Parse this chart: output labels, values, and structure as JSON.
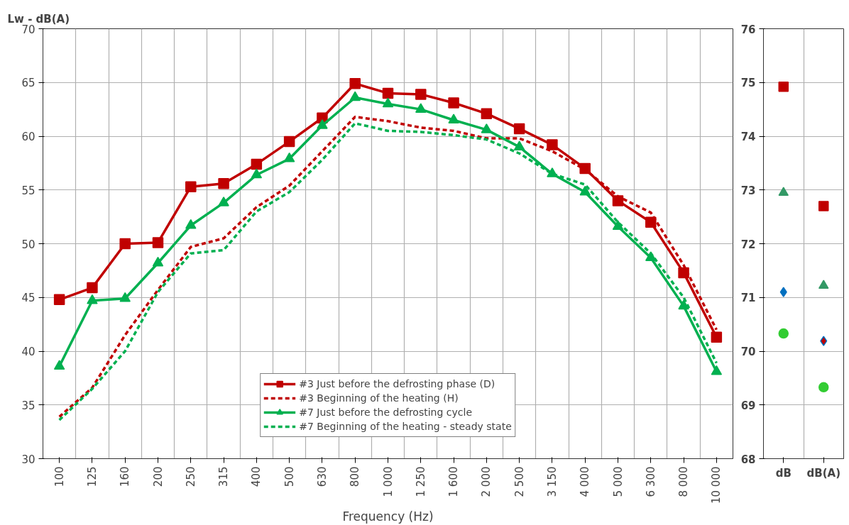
{
  "chart_data": [
    {
      "type": "line",
      "title": "Lw - dB(A)",
      "xlabel": "Frequency (Hz)",
      "categories": [
        "100",
        "125",
        "160",
        "200",
        "250",
        "315",
        "400",
        "500",
        "630",
        "800",
        "1 000",
        "1 250",
        "1 600",
        "2 000",
        "2 500",
        "3 150",
        "4 000",
        "5 000",
        "6 300",
        "8 000",
        "10 000"
      ],
      "series": [
        {
          "name": "#3 Just before the defrosting phase (D)",
          "color": "#c00000",
          "marker": "square",
          "line_style": "solid",
          "values": [
            44.8,
            45.9,
            50.0,
            50.1,
            55.3,
            55.6,
            57.4,
            59.5,
            61.7,
            64.9,
            64.0,
            63.9,
            63.1,
            62.1,
            60.7,
            59.2,
            57.0,
            54.0,
            52.0,
            47.3,
            41.3
          ]
        },
        {
          "name": "#3 Beginning of the heating (H)",
          "color": "#c00000",
          "marker": "none",
          "line_style": "dashed",
          "values": [
            33.9,
            36.6,
            41.5,
            45.7,
            49.7,
            50.5,
            53.4,
            55.4,
            58.6,
            61.8,
            61.4,
            60.8,
            60.5,
            59.8,
            59.8,
            58.6,
            56.9,
            54.4,
            52.9,
            48.0,
            42.0
          ]
        },
        {
          "name": "#7 Just before the defrosting cycle",
          "color": "#00b050",
          "marker": "triangle",
          "line_style": "solid",
          "values": [
            38.6,
            44.7,
            44.9,
            48.2,
            51.7,
            53.8,
            56.4,
            57.9,
            61.0,
            63.6,
            63.0,
            62.5,
            61.5,
            60.6,
            59.0,
            56.5,
            54.8,
            51.6,
            48.7,
            44.2,
            38.1
          ]
        },
        {
          "name": "#7 Beginning of the heating - steady state",
          "color": "#00b050",
          "marker": "none",
          "line_style": "dashed",
          "values": [
            33.6,
            36.5,
            40.0,
            45.5,
            49.1,
            49.4,
            53.0,
            54.8,
            57.8,
            61.2,
            60.5,
            60.4,
            60.1,
            59.7,
            58.4,
            56.5,
            55.5,
            52.0,
            49.1,
            45.0,
            38.9
          ]
        }
      ],
      "ylim": [
        30,
        70
      ],
      "yticks": [
        30,
        35,
        40,
        45,
        50,
        55,
        60,
        65,
        70
      ],
      "grid": true,
      "legend": "bottom"
    },
    {
      "type": "scatter",
      "categories": [
        "dB",
        "dB(A)"
      ],
      "series": [
        {
          "color": "#c00000",
          "marker": "square",
          "values": [
            74.92,
            72.7
          ]
        },
        {
          "color": "#339966",
          "marker": "triangle",
          "values": [
            72.95,
            71.22
          ]
        },
        {
          "color": "#0070c0",
          "colors": [
            "#0070c0",
            "#c00000"
          ],
          "marker": "diamond",
          "values": [
            71.1,
            70.19
          ]
        },
        {
          "color": "#33cc33",
          "marker": "circle",
          "values": [
            70.33,
            69.33
          ]
        }
      ],
      "ylim": [
        68,
        76
      ],
      "yticks": [
        68,
        69,
        70,
        71,
        72,
        73,
        74,
        75,
        76
      ],
      "grid": true,
      "legend": false
    }
  ]
}
